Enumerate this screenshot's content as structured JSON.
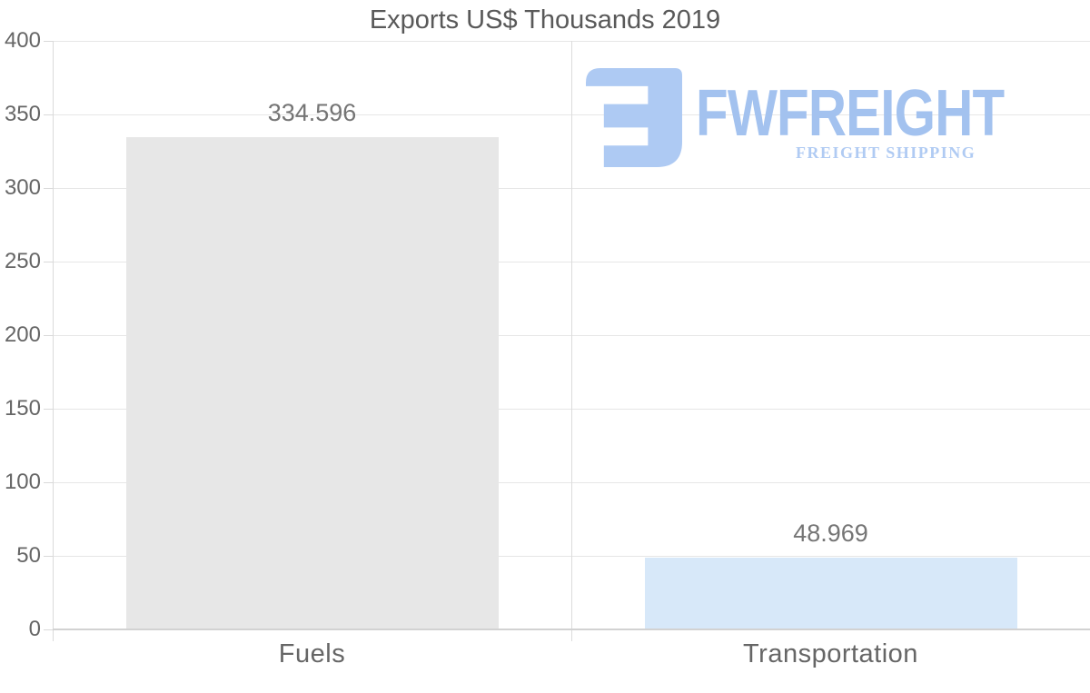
{
  "chart_data": {
    "type": "bar",
    "title": "Exports US$ Thousands 2019",
    "categories": [
      "Fuels",
      "Transportation"
    ],
    "values": [
      334.596,
      48.969
    ],
    "value_labels": [
      "334.596",
      "48.969"
    ],
    "bar_colors": [
      "#e7e7e7",
      "#d7e8f9"
    ],
    "xlabel": "",
    "ylabel": "",
    "ylim": [
      0,
      400
    ],
    "ytick_step": 50,
    "ytick_labels": [
      "0",
      "50",
      "100",
      "150",
      "200",
      "250",
      "300",
      "350",
      "400"
    ],
    "grid": "horizontal gridlines every 50, one vertical divider between categories",
    "legend": "none"
  },
  "watermark": {
    "name": "FWFREIGHT",
    "tagline": "FREIGHT SHIPPING",
    "icon": "fwfreight-monogram-icon",
    "icon_color": "#aecaf3",
    "name_color": "#a3c2ef",
    "tagline_color": "#b0cbf3"
  },
  "colors": {
    "title": "#595959",
    "axis_labels": "#666666",
    "value_labels": "#757575",
    "gridline": "#e6e6e6",
    "divider_gridline": "#dcdcdc",
    "tick": "#d9d9d9",
    "y_axis_line": "#dadada",
    "x_axis_line": "#d2d2d2",
    "background": "#ffffff"
  }
}
